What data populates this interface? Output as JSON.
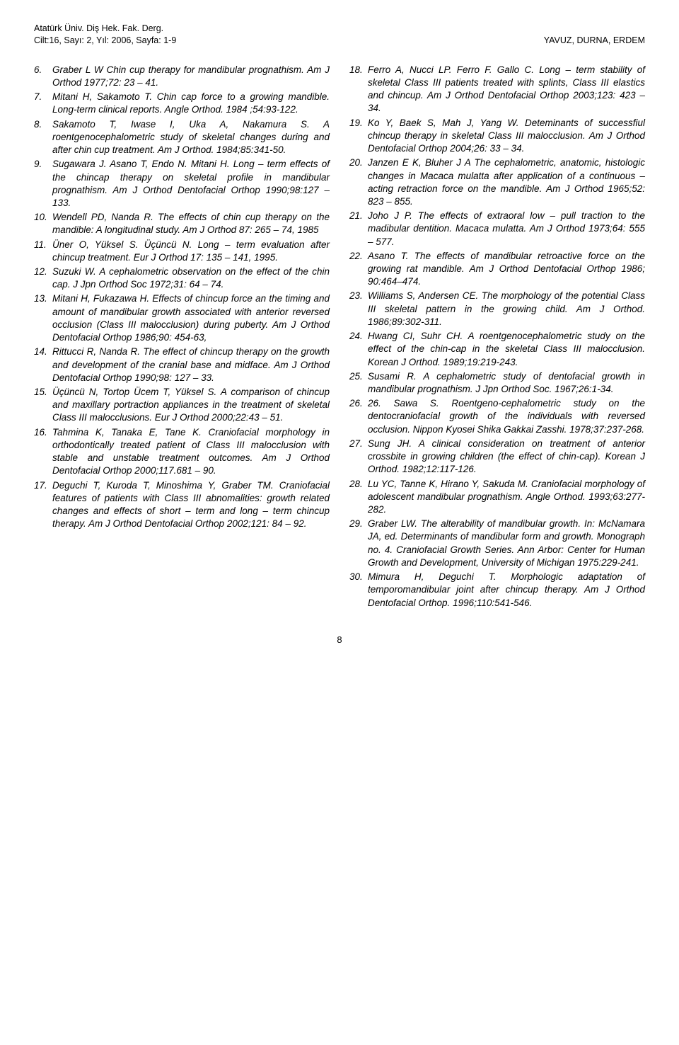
{
  "header": {
    "journal_line1": "Atatürk Üniv. Diş Hek. Fak. Derg.",
    "journal_line2": "Cilt:16, Sayı: 2, Yıl: 2006, Sayfa: 1-9",
    "authors": "YAVUZ, DURNA, ERDEM"
  },
  "page_number": "8",
  "left_refs": [
    {
      "n": "6.",
      "t": "Graber L W Chin cup therapy for mandibular prognathism. Am J Orthod 1977;72: 23 – 41."
    },
    {
      "n": "7.",
      "t": "Mitani H, Sakamoto T. Chin cap force to a growing mandible. Long-term clinical reports. Angle Orthod. 1984 ;54:93-122."
    },
    {
      "n": "8.",
      "t": "Sakamoto T, Iwase I, Uka A, Nakamura S. A roentgenocephalometric study of skeletal changes during and after chin cup treatment. Am J Orthod. 1984;85:341-50."
    },
    {
      "n": "9.",
      "t": "Sugawara J. Asano T, Endo N. Mitani H. Long – term effects of the chincap therapy on skeletal profile in mandibular prognathism. Am J Orthod Dentofacial Orthop 1990;98:127 – 133."
    },
    {
      "n": "10.",
      "t": "Wendell PD, Nanda R. The effects of chin cup therapy on the mandible: A longitudinal study. Am J Orthod 87: 265 – 74, 1985"
    },
    {
      "n": "11.",
      "t": "Üner O, Yüksel S. Üçüncü N. Long – term evaluation after chincup treatment. Eur J Orthod 17: 135 – 141, 1995."
    },
    {
      "n": "12.",
      "t": "Suzuki W. A cephalometric observation on the effect of the chin cap. J Jpn Orthod Soc 1972;31: 64 – 74."
    },
    {
      "n": "13.",
      "t": "Mitani H, Fukazawa H. Effects of chincup force an the timing and amount of mandibular growth associated with anterior reversed occlusion (Class III malocclusion) during puberty. Am J Orthod Dentofacial Orthop 1986;90: 454-63,"
    },
    {
      "n": "14.",
      "t": "Rittucci R, Nanda R. The effect of chincup therapy on the growth and development of the cranial base and midface. Am J Orthod Dentofacial Orthop 1990;98: 127 – 33."
    },
    {
      "n": "15.",
      "t": "Üçüncü N, Tortop Ücem T, Yüksel S. A comparison of chincup and maxillary portraction appliances in the treatment of skeletal Class III malocclusions. Eur J Orthod 2000;22:43 – 51."
    },
    {
      "n": "16.",
      "t": "Tahmina K, Tanaka E, Tane K. Craniofacial morphology in orthodontically treated patient of Class III malocclusion with stable and unstable treatment outcomes. Am J Orthod Dentofacial Orthop 2000;117.681 – 90."
    },
    {
      "n": "17.",
      "t": "Deguchi T, Kuroda T, Minoshima Y, Graber TM. Craniofacial features of patients with Class III abnomalities: growth related changes and effects of short – term and long – term chincup therapy. Am J Orthod Dentofacial Orthop 2002;121: 84 – 92."
    }
  ],
  "right_refs": [
    {
      "n": "18.",
      "t": "Ferro A, Nucci LP. Ferro F. Gallo C. Long – term stability of skeletal Class III patients treated with splints, Class III elastics and chincup. Am J Orthod Dentofacial Orthop 2003;123: 423 – 34."
    },
    {
      "n": "19.",
      "t": "Ko Y, Baek S, Mah J, Yang W. Deteminants of successfiul chincup therapy in skeletal Class III malocclusion. Am J Orthod Dentofacial Orthop 2004;26: 33 – 34."
    },
    {
      "n": "20.",
      "t": "Janzen E K, Bluher J A The cephalometric, anatomic, histologic changes in Macaca mulatta after application of a continuous – acting retraction force on the mandible. Am J Orthod 1965;52: 823 – 855."
    },
    {
      "n": "21.",
      "t": "Joho J P. The effects of extraoral low – pull traction to the madibular dentition. Macaca mulatta. Am J Orthod 1973;64: 555 – 577."
    },
    {
      "n": "22.",
      "t": "Asano T. The effects of mandibular retroactive force on the growing rat mandible. Am J Orthod Dentofacial Orthop 1986; 90:464–474."
    },
    {
      "n": "23.",
      "t": "Williams S, Andersen CE. The morphology of the potential Class III skeletal pattern in the growing child. Am J Orthod. 1986;89:302-311."
    },
    {
      "n": "24.",
      "t": "Hwang CI, Suhr CH. A roentgenocephalometric study on the effect of the chin-cap in the skeletal Class III malocclusion. Korean J Orthod. 1989;19:219-243."
    },
    {
      "n": "25.",
      "t": "Susami R. A cephalometric study of dentofacial growth in mandibular prognathism. J Jpn Orthod Soc. 1967;26:1-34."
    },
    {
      "n": "26.",
      "t": "26. Sawa S. Roentgeno-cephalometric study on the dentocraniofacial growth of the individuals with reversed occlusion. Nippon Kyosei Shika Gakkai Zasshi. 1978;37:237-268."
    },
    {
      "n": "27.",
      "t": "Sung JH. A clinical consideration on treatment of anterior crossbite in growing children (the effect of chin-cap). Korean J Orthod. 1982;12:117-126."
    },
    {
      "n": "28.",
      "t": "Lu YC, Tanne K, Hirano Y, Sakuda M. Craniofacial morphology of adolescent mandibular prognathism. Angle Orthod. 1993;63:277-282."
    },
    {
      "n": "29.",
      "t": "Graber LW. The alterability of mandibular growth. In: McNamara JA, ed. Determinants of mandibular form and growth. Monograph no. 4. Craniofacial Growth Series. Ann Arbor: Center for Human Growth and Development, University of Michigan 1975:229-241."
    },
    {
      "n": "30.",
      "t": "Mimura H, Deguchi T. Morphologic adaptation of temporomandibular joint after chincup therapy. Am J Orthod Dentofacial Orthop. 1996;110:541-546."
    }
  ]
}
